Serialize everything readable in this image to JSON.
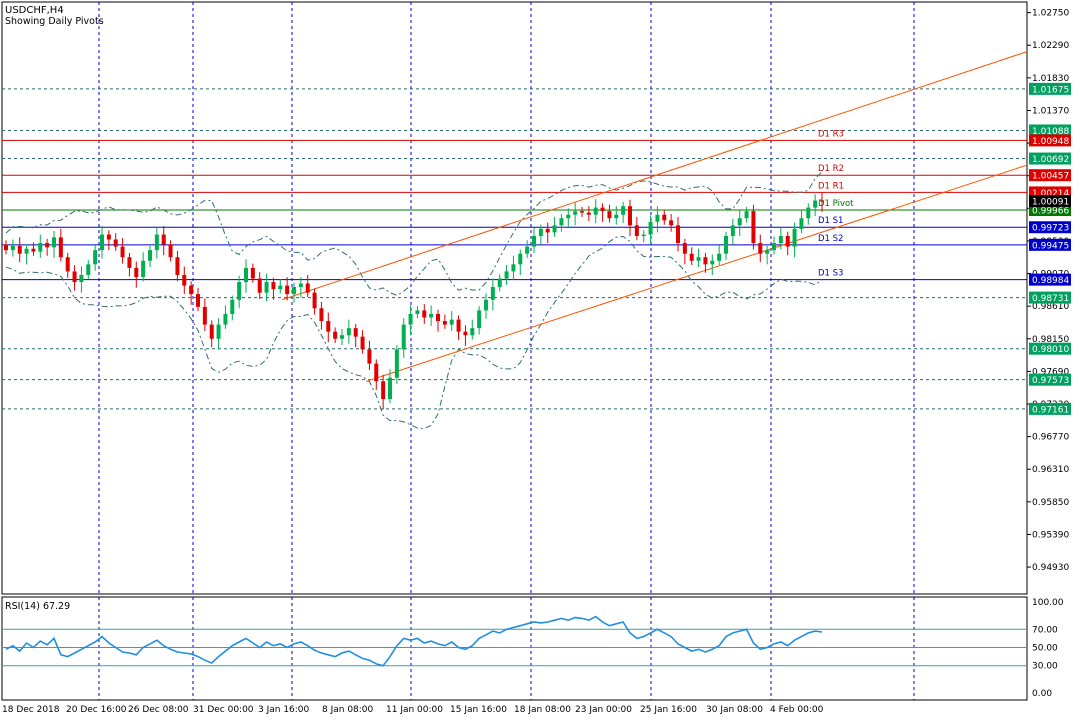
{
  "header": {
    "symbol": "USDCHF,H4",
    "subtitle": "Showing Daily Pivots"
  },
  "colors": {
    "bull": "#00b050",
    "bear": "#e00000",
    "grid": "#0000cc",
    "channel": "#ff5500",
    "bands": "#2f6f6f",
    "rsi": "#1f8fe0",
    "support": "#0000cc",
    "resistance": "#dd0000",
    "pivot": "#007700",
    "level_box": "#00a060"
  },
  "chart_data": {
    "type": "candlestick",
    "y_range": [
      0.9455,
      1.029
    ],
    "price_axis_ticks": [
      "1.02750",
      "1.02290",
      "1.01830",
      "1.01370",
      "1.00910",
      "1.00450",
      "0.99990",
      "0.99530",
      "0.99070",
      "0.98610",
      "0.98150",
      "0.97690",
      "0.97230",
      "0.96770",
      "0.96310",
      "0.95850",
      "0.95390",
      "0.94930"
    ],
    "time_axis_labels": [
      "18 Dec 2018",
      "20 Dec 16:00",
      "26 Dec 08:00",
      "31 Dec 00:00",
      "3 Jan 16:00",
      "8 Jan 08:00",
      "11 Jan 00:00",
      "15 Jan 16:00",
      "18 Jan 08:00",
      "23 Jan 00:00",
      "25 Jan 16:00",
      "30 Jan 08:00",
      "4 Feb 00:00"
    ],
    "pivot_levels": [
      {
        "label": "D1 R3",
        "value": 1.00948,
        "tag": "1.00948",
        "kind": "resistance"
      },
      {
        "label": "D1 R2",
        "value": 1.00457,
        "tag": "1.00457",
        "kind": "resistance"
      },
      {
        "label": "D1 R1",
        "value": 1.00214,
        "tag": "1.00214",
        "kind": "resistance"
      },
      {
        "label": "D1 Pivot",
        "value": 0.99966,
        "tag": "0.99966",
        "kind": "pivot"
      },
      {
        "label": "D1 S1",
        "value": 0.99723,
        "tag": "0.99723",
        "kind": "support"
      },
      {
        "label": "D1 S2",
        "value": 0.99475,
        "tag": "0.99475",
        "kind": "support"
      },
      {
        "label": "D1 S3",
        "value": 0.98984,
        "tag": "0.98984",
        "kind": "support"
      }
    ],
    "horizontal_levels": [
      {
        "value": 1.01675,
        "tag": "1.01675"
      },
      {
        "value": 1.01088,
        "tag": "1.01088"
      },
      {
        "value": 1.00692,
        "tag": "1.00692"
      },
      {
        "value": 0.98731,
        "tag": "0.98731"
      },
      {
        "value": 0.9801,
        "tag": "0.98010"
      },
      {
        "value": 0.97573,
        "tag": "0.97573"
      },
      {
        "value": 0.97161,
        "tag": "0.97161"
      }
    ],
    "last_price_tag": "1.00091",
    "channel": {
      "upper": [
        {
          "x": 0.0,
          "y": 0.987
        },
        {
          "x": 1.0,
          "y": 1.022
        }
      ],
      "lower": [
        {
          "x": 0.0,
          "y": 0.9716
        },
        {
          "x": 1.0,
          "y": 1.006
        }
      ]
    },
    "closes": [
      0.994,
      0.9946,
      0.9935,
      0.9942,
      0.9938,
      0.995,
      0.9944,
      0.9958,
      0.993,
      0.991,
      0.9895,
      0.9905,
      0.992,
      0.994,
      0.9962,
      0.9955,
      0.9945,
      0.993,
      0.9915,
      0.9902,
      0.9925,
      0.994,
      0.9962,
      0.9948,
      0.993,
      0.9905,
      0.989,
      0.9878,
      0.986,
      0.9835,
      0.9815,
      0.9835,
      0.985,
      0.987,
      0.9895,
      0.9915,
      0.99,
      0.988,
      0.9895,
      0.9885,
      0.989,
      0.9878,
      0.9888,
      0.9893,
      0.988,
      0.9858,
      0.984,
      0.9825,
      0.9815,
      0.982,
      0.983,
      0.9818,
      0.98,
      0.978,
      0.9755,
      0.973,
      0.976,
      0.98,
      0.9835,
      0.985,
      0.9855,
      0.9845,
      0.985,
      0.984,
      0.9835,
      0.9842,
      0.9825,
      0.982,
      0.983,
      0.9855,
      0.987,
      0.9888,
      0.99,
      0.991,
      0.992,
      0.9935,
      0.9945,
      0.996,
      0.997,
      0.9965,
      0.9975,
      0.9985,
      0.999,
      0.9995,
      0.9993,
      0.999,
      1.0,
      0.9995,
      0.9985,
      0.999,
      1.0002,
      0.9975,
      0.996,
      0.9962,
      0.998,
      0.999,
      0.9982,
      0.9975,
      0.995,
      0.9935,
      0.9925,
      0.993,
      0.992,
      0.9925,
      0.9935,
      0.996,
      0.9975,
      0.9985,
      0.9995,
      0.995,
      0.9935,
      0.994,
      0.995,
      0.996,
      0.9945,
      0.997,
      0.9985,
      1.0,
      1.001,
      1.0009
    ],
    "rsi": {
      "label": "RSI(14) 67.29",
      "ticks": [
        "100.00",
        "70.00",
        "50.00",
        "30.00",
        "0.00"
      ],
      "levels": [
        70,
        50,
        30
      ],
      "values": [
        48,
        52,
        46,
        55,
        50,
        57,
        53,
        60,
        42,
        40,
        44,
        48,
        52,
        56,
        62,
        55,
        50,
        45,
        44,
        42,
        50,
        54,
        58,
        52,
        48,
        45,
        44,
        43,
        40,
        36,
        33,
        40,
        46,
        52,
        56,
        60,
        55,
        50,
        56,
        52,
        54,
        50,
        54,
        56,
        52,
        47,
        44,
        42,
        40,
        44,
        46,
        42,
        38,
        36,
        32,
        30,
        40,
        52,
        60,
        58,
        60,
        55,
        57,
        54,
        52,
        56,
        50,
        48,
        52,
        60,
        64,
        68,
        66,
        70,
        72,
        74,
        76,
        78,
        77,
        78,
        80,
        82,
        80,
        83,
        82,
        80,
        84,
        78,
        74,
        76,
        78,
        66,
        60,
        62,
        66,
        70,
        66,
        62,
        54,
        50,
        46,
        48,
        45,
        48,
        52,
        62,
        66,
        68,
        70,
        55,
        48,
        50,
        54,
        56,
        52,
        58,
        62,
        66,
        68,
        67
      ]
    }
  }
}
